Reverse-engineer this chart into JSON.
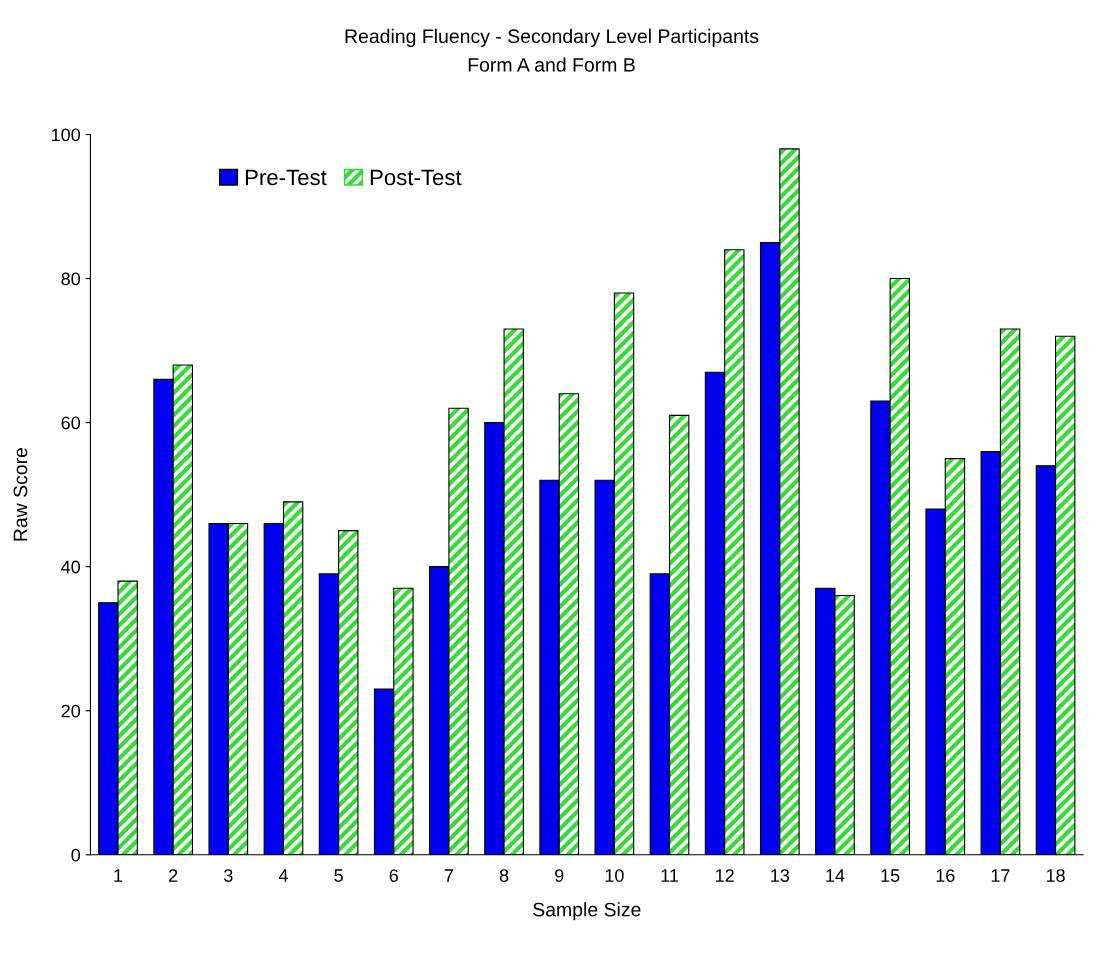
{
  "chart_data": {
    "type": "bar",
    "title": "Reading Fluency - Secondary Level Participants",
    "subtitle": "Form A and Form B",
    "xlabel": "Sample Size",
    "ylabel": "Raw Score",
    "categories": [
      "1",
      "2",
      "3",
      "4",
      "5",
      "6",
      "7",
      "8",
      "9",
      "10",
      "11",
      "12",
      "13",
      "14",
      "15",
      "16",
      "17",
      "18"
    ],
    "series": [
      {
        "name": "Pre-Test",
        "color": "#0000ee",
        "values": [
          35,
          66,
          46,
          46,
          39,
          23,
          40,
          60,
          52,
          52,
          39,
          67,
          85,
          37,
          63,
          48,
          56,
          54
        ]
      },
      {
        "name": "Post-Test",
        "color": "#33dd33",
        "values": [
          38,
          68,
          46,
          49,
          45,
          37,
          62,
          73,
          64,
          78,
          61,
          84,
          98,
          36,
          80,
          55,
          73,
          72
        ]
      }
    ],
    "ylim": [
      0,
      100
    ],
    "yticks": [
      0,
      20,
      40,
      60,
      80,
      100
    ],
    "grid": false,
    "legend": "top left"
  }
}
